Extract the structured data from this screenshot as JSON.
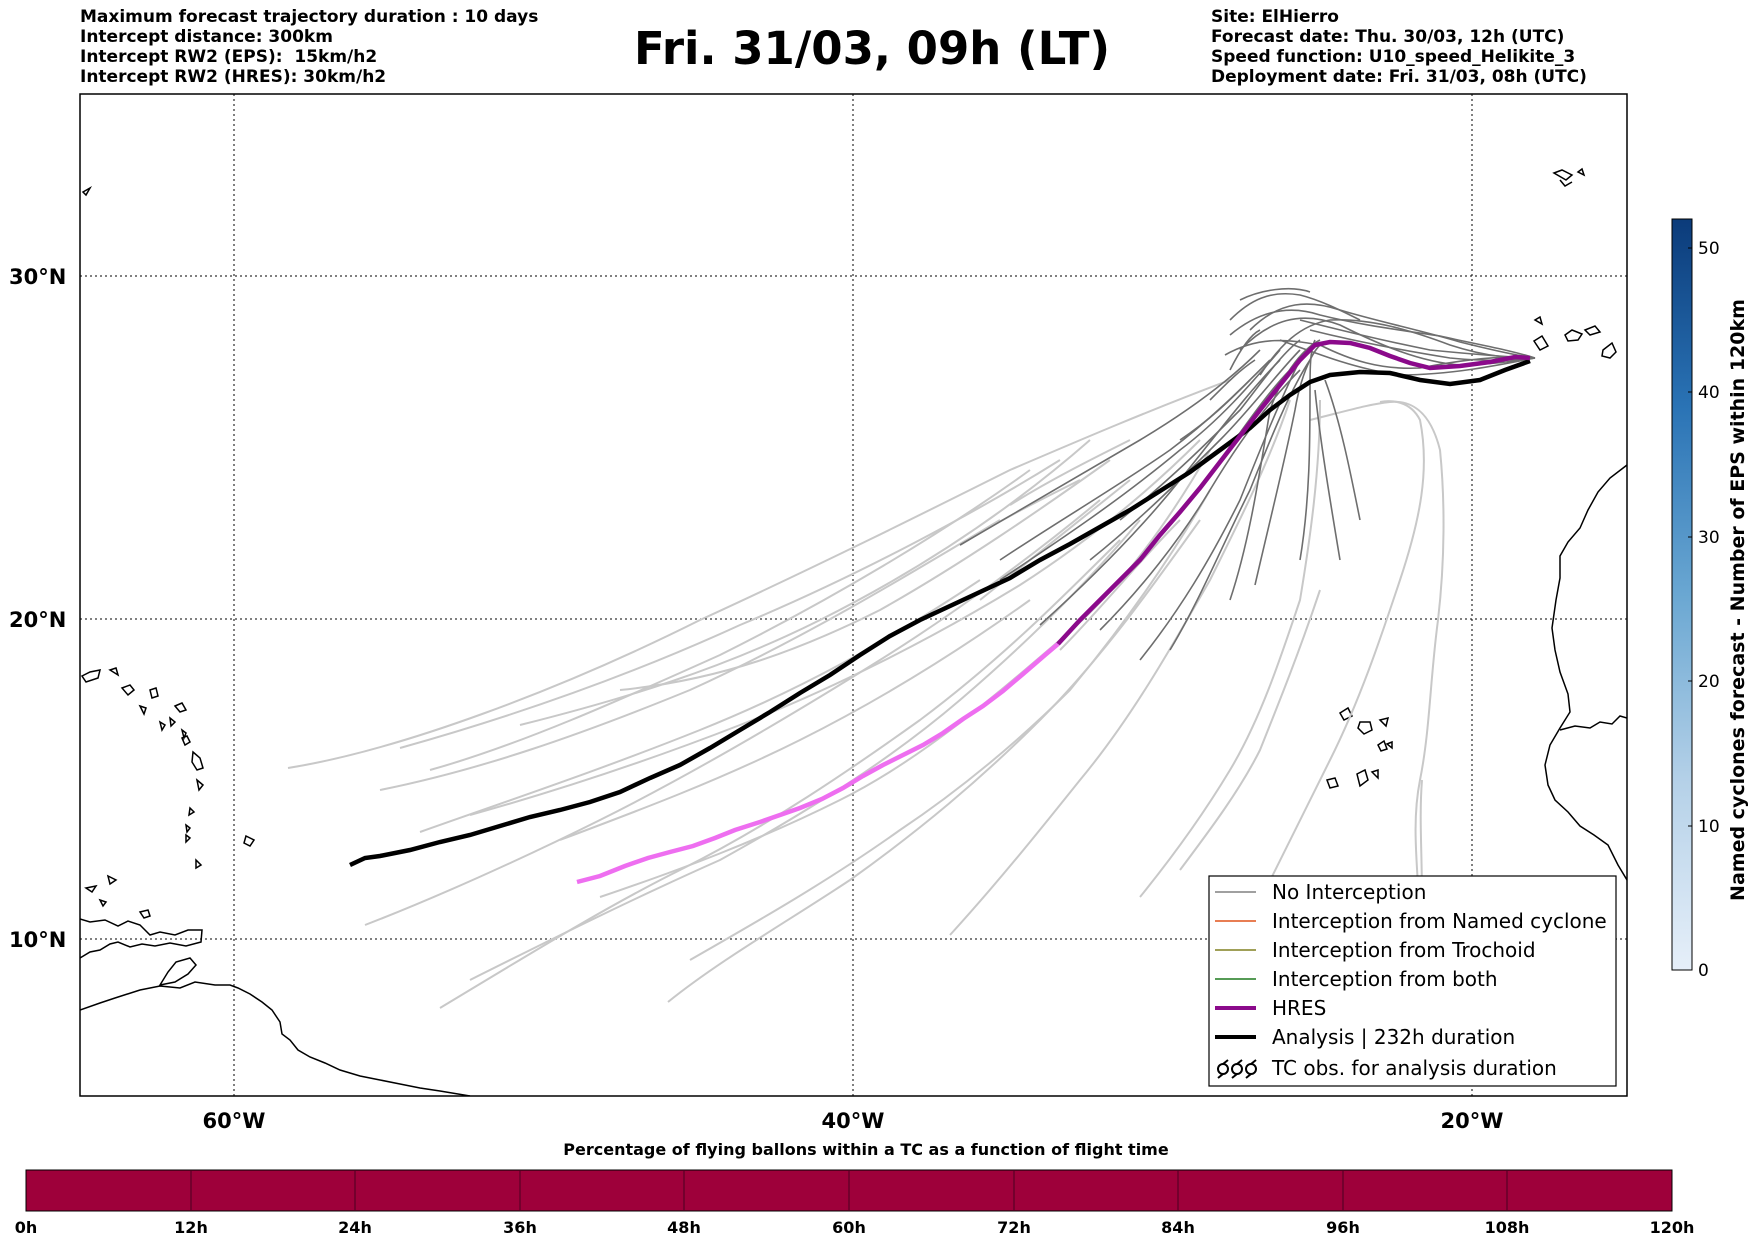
{
  "header": {
    "left": [
      "Maximum forecast trajectory duration : 10 days",
      "Intercept distance: 300km",
      "Intercept RW2 (EPS):  15km/h2",
      "Intercept RW2 (HRES): 30km/h2"
    ],
    "title": "Fri. 31/03, 09h (LT)",
    "right": [
      "Site: ElHierro",
      "Forecast date: Thu. 30/03, 12h (UTC)",
      "Speed function: U10_speed_Helikite_3",
      "Deployment date: Fri. 31/03, 08h (UTC)"
    ]
  },
  "map": {
    "lat_labels": [
      "30°N",
      "20°N",
      "10°N"
    ],
    "lon_labels": [
      "60°W",
      "40°W",
      "20°W"
    ],
    "extent": {
      "lon_min": -65,
      "lon_max": -15,
      "lat_min": 5.5,
      "lat_max": 35.3
    },
    "colors": {
      "ensemble_dark": "#6e6e6e",
      "ensemble_light": "#c8c8c8",
      "hres": "#8b0a8b",
      "hres_light": "#ee6ef0",
      "analysis": "#000000"
    }
  },
  "legend": {
    "items": [
      {
        "label": "No Interception",
        "color": "#808080",
        "icon": "thin-line"
      },
      {
        "label": "Interception from Named cyclone",
        "color": "#e0531a",
        "icon": "thin-line"
      },
      {
        "label": "Interception from Trochoid",
        "color": "#808020",
        "icon": "thin-line"
      },
      {
        "label": "Interception from both",
        "color": "#1f7a1f",
        "icon": "thin-line"
      },
      {
        "label": "HRES",
        "color": "#8b0a8b",
        "icon": "thick-line"
      },
      {
        "label": "Analysis | 232h duration",
        "color": "#000000",
        "icon": "thick-line"
      },
      {
        "label": "TC obs. for analysis duration",
        "color": "#000000",
        "icon": "cyclone-symbols"
      }
    ]
  },
  "colorbar_right": {
    "label": "Named cyclones forecast - Number of EPS within 120km",
    "ticks": [
      "0",
      "10",
      "20",
      "30",
      "40",
      "50"
    ],
    "range": [
      0,
      52
    ],
    "color_low": "#e4eef8",
    "color_high": "#0b3b7a"
  },
  "colorbar_bottom": {
    "title": "Percentage of flying ballons within a TC as a function of flight time",
    "ticks": [
      "0h",
      "12h",
      "24h",
      "36h",
      "48h",
      "60h",
      "72h",
      "84h",
      "96h",
      "108h",
      "120h"
    ],
    "fill_color": "#9e003a"
  }
}
